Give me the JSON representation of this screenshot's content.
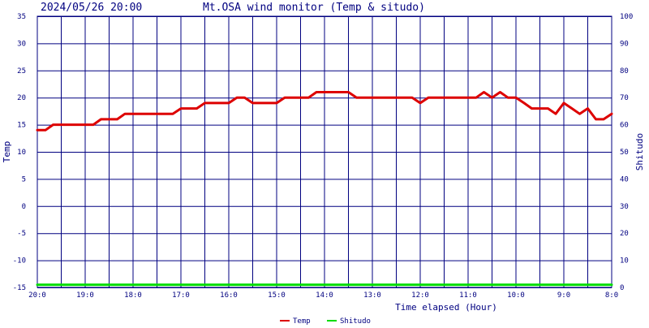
{
  "header": {
    "timestamp": "2024/05/26 20:00",
    "title": "Mt.OSA wind monitor (Temp & situdo)"
  },
  "colors": {
    "grid": "#000080",
    "text": "#000080",
    "temp_line": "#dd0000",
    "humidity_line": "#00dd00",
    "background": "#ffffff"
  },
  "chart_data": {
    "type": "line",
    "xlabel": "Time elapsed (Hour)",
    "ylabel_left": "Temp",
    "ylabel_right": "Shitudo",
    "ylim_left": [
      -15,
      35
    ],
    "ylim_right": [
      0,
      100
    ],
    "y_ticks_left": [
      35,
      30,
      25,
      20,
      15,
      10,
      5,
      0,
      -5,
      -10,
      -15
    ],
    "y_ticks_right": [
      100,
      90,
      80,
      70,
      60,
      50,
      40,
      30,
      20,
      10,
      0
    ],
    "xlim": [
      20,
      8
    ],
    "x_ticks": [
      {
        "value": 20,
        "label": "20:0"
      },
      {
        "value": 19,
        "label": "19:0"
      },
      {
        "value": 18,
        "label": "18:0"
      },
      {
        "value": 17,
        "label": "17:0"
      },
      {
        "value": 16,
        "label": "16:0"
      },
      {
        "value": 15,
        "label": "15:0"
      },
      {
        "value": 14,
        "label": "14:0"
      },
      {
        "value": 13,
        "label": "13:0"
      },
      {
        "value": 12,
        "label": "12:0"
      },
      {
        "value": 11,
        "label": "11:0"
      },
      {
        "value": 10,
        "label": "10:0"
      },
      {
        "value": 9,
        "label": "9:0"
      },
      {
        "value": 8,
        "label": "8:0"
      }
    ],
    "grid": true,
    "legend_position": "bottom-center",
    "series": [
      {
        "name": "Temp",
        "axis": "left",
        "color": "#dd0000",
        "x": [
          20.0,
          19.83,
          19.67,
          19.5,
          19.33,
          19.17,
          19.0,
          18.83,
          18.67,
          18.5,
          18.33,
          18.17,
          18.0,
          17.83,
          17.67,
          17.5,
          17.33,
          17.17,
          17.0,
          16.83,
          16.67,
          16.5,
          16.33,
          16.17,
          16.0,
          15.83,
          15.67,
          15.5,
          15.33,
          15.17,
          15.0,
          14.83,
          14.67,
          14.5,
          14.33,
          14.17,
          14.0,
          13.83,
          13.67,
          13.5,
          13.33,
          13.17,
          13.0,
          12.83,
          12.67,
          12.5,
          12.33,
          12.17,
          12.0,
          11.83,
          11.67,
          11.5,
          11.33,
          11.17,
          11.0,
          10.83,
          10.67,
          10.5,
          10.33,
          10.17,
          10.0,
          9.83,
          9.67,
          9.5,
          9.33,
          9.17,
          9.0,
          8.83,
          8.67,
          8.5,
          8.33,
          8.17,
          8.0
        ],
        "y": [
          14,
          14,
          15,
          15,
          15,
          15,
          15,
          15,
          16,
          16,
          16,
          17,
          17,
          17,
          17,
          17,
          17,
          17,
          18,
          18,
          18,
          19,
          19,
          19,
          19,
          20,
          20,
          19,
          19,
          19,
          19,
          20,
          20,
          20,
          20,
          21,
          21,
          21,
          21,
          21,
          20,
          20,
          20,
          20,
          20,
          20,
          20,
          20,
          19,
          20,
          20,
          20,
          20,
          20,
          20,
          20,
          21,
          20,
          21,
          20,
          20,
          19,
          18,
          18,
          18,
          17,
          19,
          18,
          17,
          18,
          16,
          16,
          17
        ]
      },
      {
        "name": "Shitudo",
        "axis": "right",
        "color": "#00dd00",
        "x": [
          20.0,
          8.0
        ],
        "y": [
          1,
          1
        ]
      }
    ]
  }
}
